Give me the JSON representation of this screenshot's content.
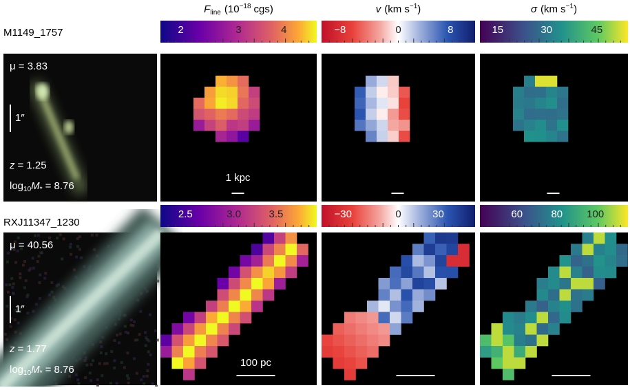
{
  "columns": [
    {
      "symbol": "F",
      "sub": "line",
      "unit": "(10",
      "sup": "−18",
      "unit_end": "cgs)"
    },
    {
      "symbol": "v",
      "unit": "(km s",
      "sup": "−1",
      "unit_end": ")"
    },
    {
      "symbol": "σ",
      "unit": "(km s",
      "sup": "−1",
      "unit_end": ")"
    }
  ],
  "rows": [
    {
      "name": "M1149_1757",
      "mu": "μ = 3.83",
      "scale": "1″",
      "z_symbol": "z",
      "z_value": "= 1.25",
      "mass_prefix": "log",
      "mass_sub": "10",
      "mass_symbol": "M",
      "mass_star": "*",
      "mass_value": "= 8.76",
      "scalebar": "1 kpc",
      "colorbars": [
        [
          "2",
          "3",
          "4"
        ],
        [
          "−8",
          "0",
          "8"
        ],
        [
          "15",
          "30",
          "45"
        ]
      ]
    },
    {
      "name": "RXJ11347_1230",
      "mu": "μ = 40.56",
      "scale": "1″",
      "z_symbol": "z",
      "z_value": "= 1.77",
      "mass_prefix": "log",
      "mass_sub": "10",
      "mass_symbol": "M",
      "mass_star": "*",
      "mass_value": "= 8.76",
      "scalebar": "100 pc",
      "colorbars": [
        [
          "2.5",
          "3.0",
          "3.5"
        ],
        [
          "−30",
          "0",
          "30"
        ],
        [
          "60",
          "80",
          "100"
        ]
      ]
    }
  ]
}
